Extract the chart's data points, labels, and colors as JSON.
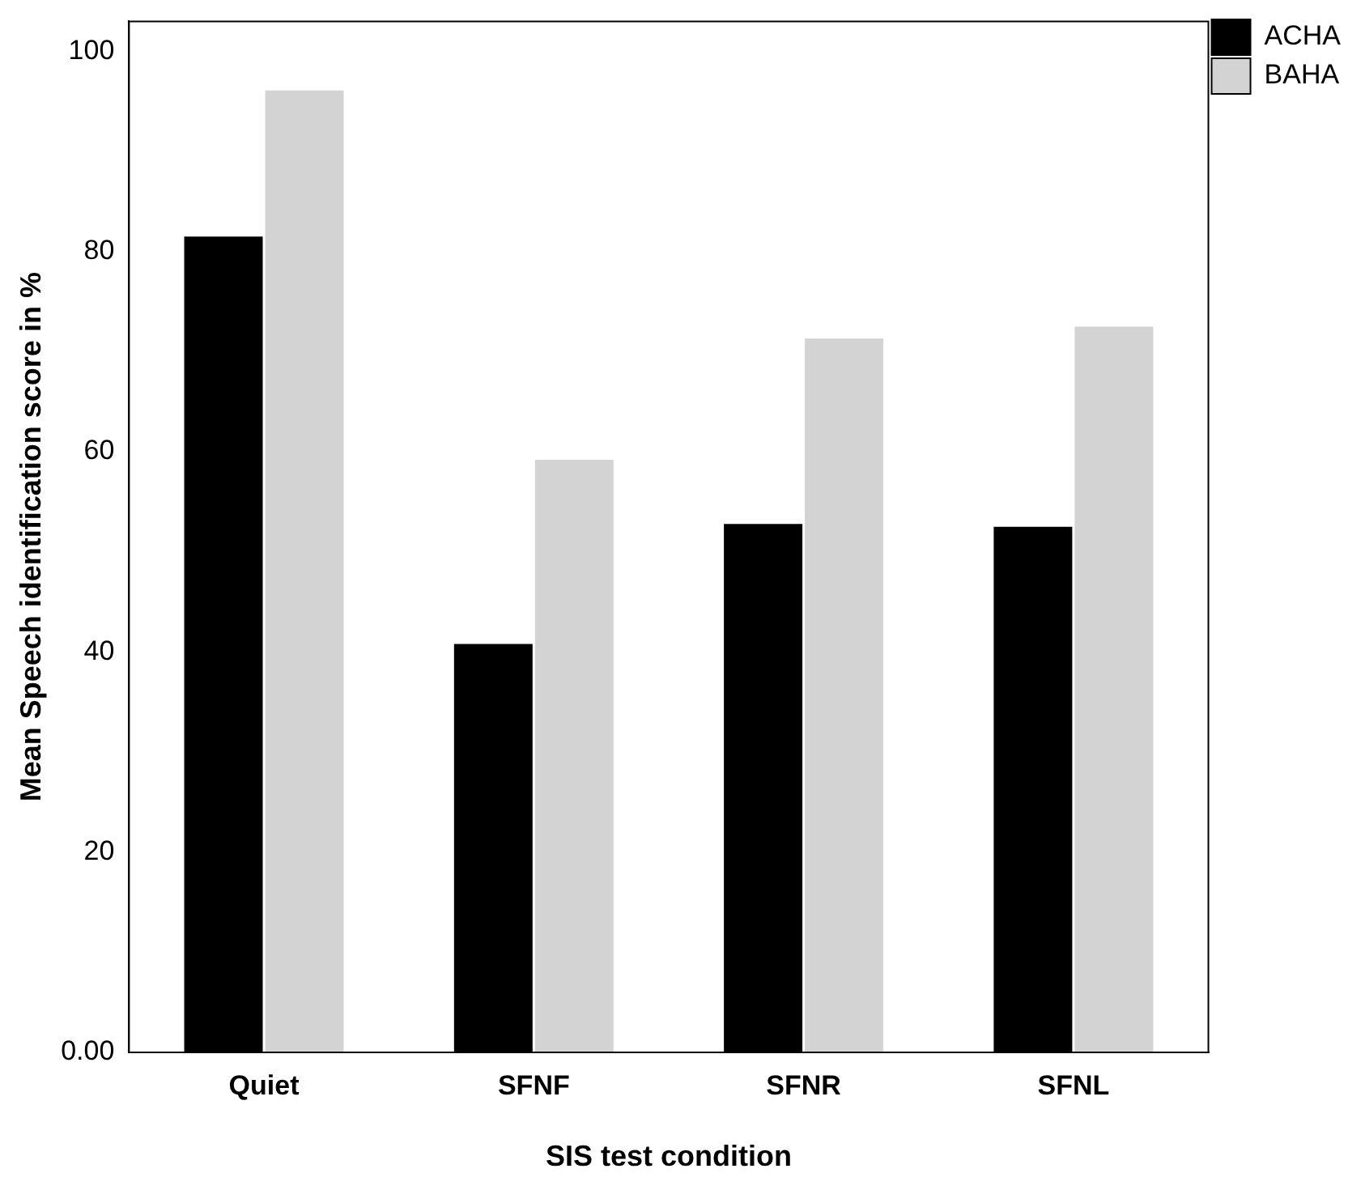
{
  "chart_data": {
    "type": "bar",
    "xlabel": "SIS test condition",
    "ylabel": "Mean Speech identification score in %",
    "categories": [
      "Quiet",
      "SFNF",
      "SFNR",
      "SFNL"
    ],
    "series": [
      {
        "name": "ACHA",
        "color": "#000000",
        "values": [
          81.5,
          40.8,
          52.8,
          52.5
        ]
      },
      {
        "name": "BAHA",
        "color": "#d3d3d3",
        "values": [
          96.1,
          59.2,
          71.3,
          72.5
        ]
      }
    ],
    "ylim": [
      0,
      103
    ],
    "yticks": [
      {
        "value": 0,
        "label": "0.00"
      },
      20,
      40,
      60,
      80,
      100
    ],
    "grid": false,
    "legend": "top right"
  }
}
